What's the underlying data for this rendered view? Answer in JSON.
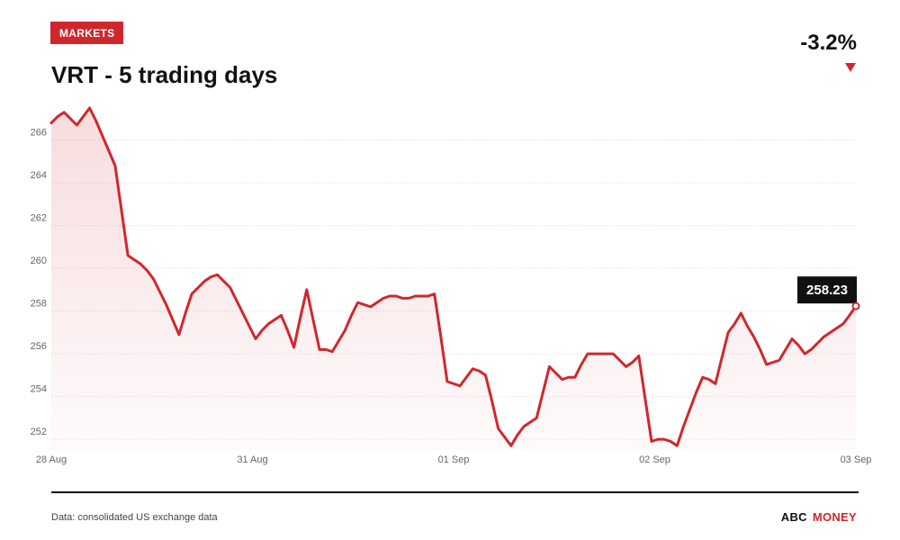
{
  "header": {
    "badge": "MARKETS",
    "title": "VRT - 5 trading days",
    "change": "-3.2%"
  },
  "footer": {
    "source": "Data: consolidated US exchange data",
    "brand_part1": "ABC",
    "brand_part2": "MONEY"
  },
  "colors": {
    "accent": "#d0272d",
    "text": "#111111",
    "grid": "#e8e8e8"
  },
  "chart_data": {
    "type": "area",
    "ylim": [
      251.5,
      267.5
    ],
    "yticks": [
      252,
      254,
      256,
      258,
      260,
      262,
      264,
      266
    ],
    "xtick_labels": [
      "28 Aug",
      "31 Aug",
      "01 Sep",
      "02 Sep",
      "03 Sep"
    ],
    "x": [
      0,
      0.5,
      1,
      1.5,
      2,
      2.5,
      3,
      3.5,
      4,
      4.5,
      5,
      5.5,
      6,
      6.5,
      7,
      7.5,
      8,
      8.5,
      9,
      9.5,
      10,
      10.5,
      11,
      11.5,
      12,
      12.5,
      13,
      13.5,
      14,
      14.5,
      15,
      15.5,
      16,
      16.5,
      17,
      17.5,
      18,
      18.5,
      19,
      19.5,
      20,
      20.5,
      21,
      21.5,
      22,
      22.5,
      23,
      23.5,
      24,
      24.5,
      25,
      25.5,
      26,
      26.5,
      27,
      27.5,
      28,
      28.5,
      29,
      29.5,
      30,
      30.5,
      31,
      31.5,
      32,
      32.5,
      33,
      33.5,
      34,
      34.5,
      35,
      35.5,
      36,
      36.5,
      37,
      37.5,
      38,
      38.5,
      39,
      39.5,
      40,
      40.5,
      41,
      41.5,
      42,
      42.5,
      43,
      43.5,
      44,
      44.5,
      45,
      45.5,
      46,
      46.5,
      47,
      47.5,
      48,
      48.5,
      49,
      49.5,
      50,
      50.5,
      51,
      51.5,
      52,
      52.5,
      53,
      53.5,
      54,
      54.5,
      55,
      55.5,
      56,
      56.5,
      57,
      57.5,
      58,
      58.5,
      59,
      59.5,
      60,
      60.5,
      61,
      61.5,
      62,
      62.5,
      63
    ],
    "series": [
      {
        "values": [
          266.8,
          267.1,
          267.3,
          267.0,
          266.7,
          267.1,
          267.5,
          266.9,
          266.2,
          265.5,
          264.8,
          262.7,
          260.6,
          260.4,
          260.2,
          259.9,
          259.5,
          258.9,
          258.3,
          257.6,
          256.9,
          257.9,
          258.8,
          259.1,
          259.4,
          259.6,
          259.7,
          259.4,
          259.1,
          258.5,
          257.9,
          257.3,
          256.7,
          257.1,
          257.4,
          257.6,
          257.8,
          257.1,
          256.3,
          257.7,
          259.0,
          257.6,
          256.2,
          256.2,
          256.1,
          256.6,
          257.1,
          257.8,
          258.4,
          258.3,
          258.2,
          258.4,
          258.6,
          258.7,
          258.7,
          258.6,
          258.6,
          258.7,
          258.7,
          258.7,
          258.8,
          256.8,
          254.7,
          254.6,
          254.5,
          254.9,
          255.3,
          255.2,
          255.0,
          253.8,
          252.5,
          252.1,
          251.7,
          252.2,
          252.6,
          252.8,
          253.0,
          254.2,
          255.4,
          255.1,
          254.8,
          254.9,
          254.9,
          255.5,
          256.0,
          256.0,
          256.0,
          256.0,
          256.0,
          255.7,
          255.4,
          255.6,
          255.9,
          253.9,
          251.9,
          252.0,
          252.0,
          251.9,
          251.7,
          252.6,
          253.4,
          254.2,
          254.9,
          254.8,
          254.6,
          255.8,
          257.0,
          257.4,
          257.9,
          257.3,
          256.8,
          256.2,
          255.5,
          255.6,
          255.7,
          256.2,
          256.7,
          256.4,
          256.0,
          256.2,
          256.5,
          256.8,
          257.0,
          257.2,
          257.4,
          257.8,
          258.23
        ]
      }
    ],
    "last_label": "258.23"
  }
}
